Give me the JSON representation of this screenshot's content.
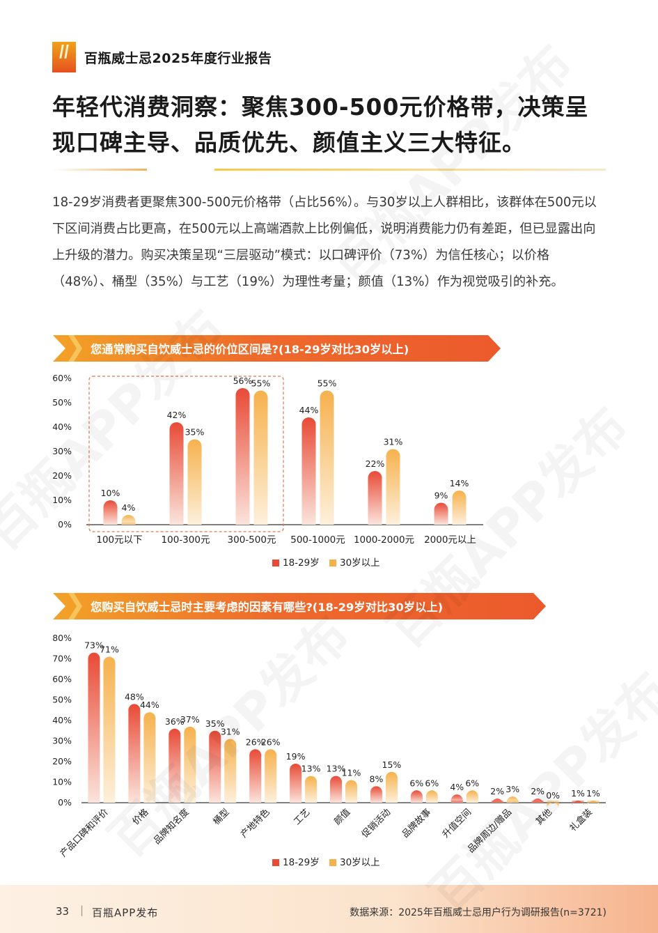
{
  "header": {
    "report_name": "百瓶威士忌2025年度行业报告"
  },
  "headline": "年轻代消费洞察：聚焦300-500元价格带，决策呈现口碑主导、品质优先、颜值主义三大特征。",
  "body_text": "18-29岁消费者更聚焦300-500元价格带（占比56%）。与30岁以上人群相比，该群体在500元以下区间消费占比更高，在500元以上高端酒款上比例偏低，说明消费能力仍有差距，但已显露出向上升级的潜力。购买决策呈现“三层驱动”模式：以口碑评价（73%）为信任核心；以价格（48%）、桶型（35%）与工艺（19%）为理性考量；颜值（13%）作为视觉吸引的补充。",
  "colors": {
    "young": "#e84a36",
    "older": "#f6b14c",
    "accent": "#ee6a2b"
  },
  "chart_data": [
    {
      "type": "bar",
      "title": "您通常购买自饮威士忌的价位区间是?(18-29岁对比30岁以上)",
      "categories": [
        "100元以下",
        "100-300元",
        "300-500元",
        "500-1000元",
        "1000-2000元",
        "2000元以上"
      ],
      "series": [
        {
          "name": "18-29岁",
          "values": [
            10,
            42,
            56,
            44,
            22,
            9
          ]
        },
        {
          "name": "30岁以上",
          "values": [
            4,
            35,
            55,
            55,
            31,
            14
          ]
        }
      ],
      "y_ticks": [
        "60%",
        "50%",
        "40%",
        "30%",
        "20%",
        "10%",
        "0%"
      ],
      "ylim": [
        0,
        60
      ],
      "highlighted_categories": [
        "100元以下",
        "100-300元",
        "300-500元"
      ],
      "legend": "bottom"
    },
    {
      "type": "bar",
      "title": "您购买自饮威士忌时主要考虑的因素有哪些?(18-29岁对比30岁以上)",
      "categories": [
        "产品口碑和评价",
        "价格",
        "品牌知名度",
        "桶型",
        "产地特色",
        "工艺",
        "颜值",
        "促销活动",
        "品牌故事",
        "升值空间",
        "品牌周边/赠品",
        "其他",
        "礼盒装"
      ],
      "series": [
        {
          "name": "18-29岁",
          "values": [
            73,
            48,
            36,
            35,
            26,
            19,
            13,
            8,
            6,
            4,
            2,
            2,
            1
          ]
        },
        {
          "name": "30岁以上",
          "values": [
            71,
            44,
            37,
            31,
            26,
            13,
            11,
            15,
            6,
            6,
            3,
            0,
            1
          ]
        }
      ],
      "y_ticks": [
        "80%",
        "70%",
        "60%",
        "50%",
        "40%",
        "30%",
        "20%",
        "10%",
        "0%"
      ],
      "ylim": [
        0,
        80
      ],
      "legend": "bottom"
    }
  ],
  "footer": {
    "page_number": "33",
    "separator": "|",
    "publisher": "百瓶APP发布",
    "source": "数据来源：2025年百瓶威士忌用户行为调研报告(n=3721)"
  },
  "watermark": "百瓶APP发布"
}
